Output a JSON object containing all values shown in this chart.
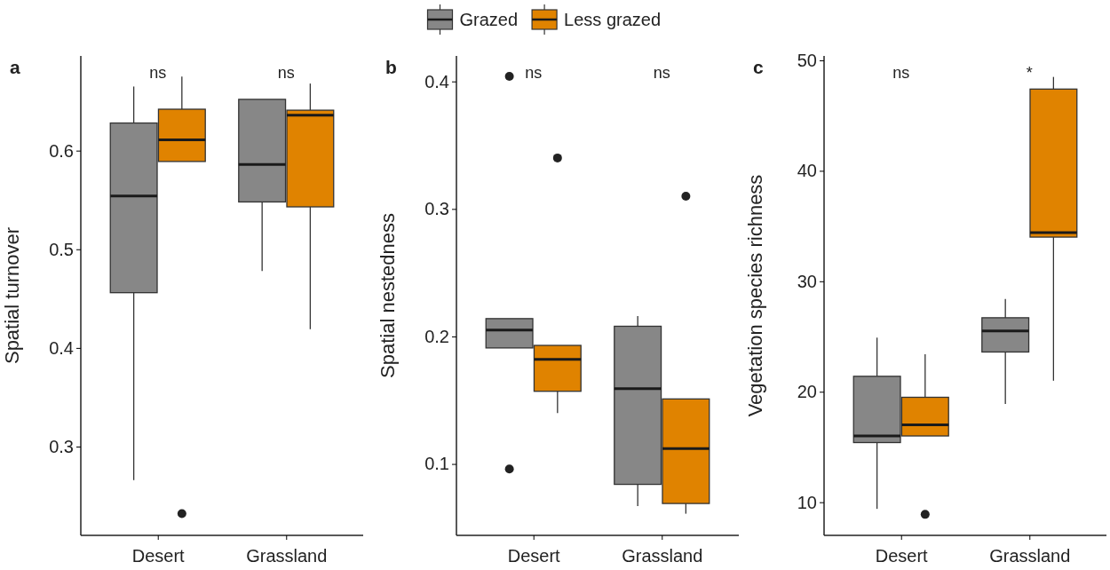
{
  "chart_data": [
    {
      "type": "box",
      "title": "a",
      "ylabel": "Spatial turnover",
      "categories": [
        "Desert",
        "Grassland"
      ],
      "ylim": [
        0.21,
        0.696
      ],
      "yticks": [
        0.3,
        0.4,
        0.5,
        0.6
      ],
      "legend": "top",
      "annotations": [
        "ns",
        "ns"
      ],
      "series": [
        {
          "name": "Grazed",
          "color": "#878787",
          "boxes": [
            {
              "low": 0.266,
              "q1": 0.456,
              "median": 0.554,
              "q3": 0.628,
              "high": 0.665
            },
            {
              "low": 0.478,
              "q1": 0.548,
              "median": 0.586,
              "q3": 0.652,
              "high": 0.652
            }
          ]
        },
        {
          "name": "Less grazed",
          "color": "#e08300",
          "boxes": [
            {
              "low": 0.589,
              "q1": 0.589,
              "median": 0.611,
              "q3": 0.642,
              "high": 0.675,
              "outliers": [
                0.232
              ]
            },
            {
              "low": 0.419,
              "q1": 0.543,
              "median": 0.636,
              "q3": 0.641,
              "high": 0.668
            }
          ]
        }
      ]
    },
    {
      "type": "box",
      "title": "b",
      "ylabel": "Spatial nestedness",
      "categories": [
        "Desert",
        "Grassland"
      ],
      "ylim": [
        0.044,
        0.42
      ],
      "yticks": [
        0.1,
        0.2,
        0.3,
        0.4
      ],
      "annotations": [
        "ns",
        "ns"
      ],
      "series": [
        {
          "color": "#878787",
          "boxes": [
            {
              "low": 0.191,
              "q1": 0.191,
              "median": 0.205,
              "q3": 0.214,
              "high": 0.214,
              "outliers": [
                0.404,
                0.096
              ]
            },
            {
              "low": 0.067,
              "q1": 0.084,
              "median": 0.159,
              "q3": 0.208,
              "high": 0.216
            }
          ]
        },
        {
          "color": "#e08300",
          "boxes": [
            {
              "low": 0.14,
              "q1": 0.157,
              "median": 0.182,
              "q3": 0.193,
              "high": 0.193,
              "outliers": [
                0.34
              ]
            },
            {
              "low": 0.061,
              "q1": 0.069,
              "median": 0.112,
              "q3": 0.151,
              "high": 0.151,
              "outliers": [
                0.31
              ]
            }
          ]
        }
      ]
    },
    {
      "type": "box",
      "title": "c",
      "ylabel": "Vegetation species richness",
      "categories": [
        "Desert",
        "Grassland"
      ],
      "ylim": [
        7,
        50.4
      ],
      "yticks": [
        10,
        20,
        30,
        40,
        50
      ],
      "annotations": [
        "ns",
        "*"
      ],
      "series": [
        {
          "color": "#878787",
          "boxes": [
            {
              "low": 9.4,
              "q1": 15.4,
              "median": 16.0,
              "q3": 21.4,
              "high": 24.9
            },
            {
              "low": 18.9,
              "q1": 23.6,
              "median": 25.5,
              "q3": 26.7,
              "high": 28.4
            }
          ]
        },
        {
          "color": "#e08300",
          "boxes": [
            {
              "low": 16.0,
              "q1": 16.0,
              "median": 17.0,
              "q3": 19.5,
              "high": 23.4,
              "outliers": [
                8.9
              ]
            },
            {
              "low": 21.0,
              "q1": 34.0,
              "median": 34.4,
              "q3": 47.4,
              "high": 48.5
            }
          ]
        }
      ]
    }
  ]
}
